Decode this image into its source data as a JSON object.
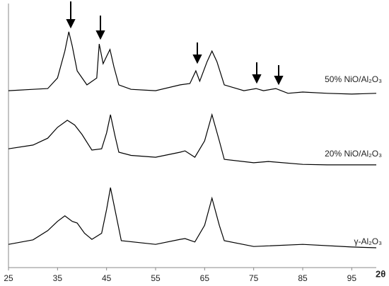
{
  "chart_data": {
    "type": "line",
    "xlabel": "2θ",
    "xlim": [
      25,
      100
    ],
    "xticks": [
      25,
      35,
      45,
      55,
      65,
      75,
      85,
      95
    ],
    "ylim": [
      0,
      100
    ],
    "series": [
      {
        "name": "50% NiO/Al₂O₃",
        "color": "#000000",
        "x": [
          25,
          30,
          33,
          35,
          36.5,
          37.3,
          38,
          39,
          41,
          43,
          43.5,
          44.3,
          45,
          45.7,
          46.5,
          47.5,
          50,
          55,
          60,
          62,
          63.2,
          64,
          65.5,
          66.5,
          67.5,
          69,
          73,
          75.5,
          77,
          79.5,
          82,
          85,
          90,
          95,
          100
        ],
        "values": [
          67,
          67.5,
          67.8,
          71.8,
          82,
          89.3,
          84,
          74.5,
          69.2,
          71.8,
          84.7,
          77.2,
          80,
          82.6,
          76,
          69.2,
          67.5,
          67,
          69.2,
          69.7,
          74.5,
          70.6,
          78,
          82,
          78,
          69.2,
          67,
          67.8,
          67,
          67.8,
          66,
          66.5,
          66,
          65.7,
          66
        ]
      },
      {
        "name": "20% NiO/Al₂O₃",
        "color": "#000000",
        "x": [
          25,
          30,
          33,
          35,
          37,
          38.5,
          40,
          42,
          44,
          45,
          45.8,
          46.7,
          47.5,
          50,
          55,
          60,
          61,
          63,
          65,
          66.5,
          68,
          69,
          75,
          78,
          85,
          90,
          100
        ],
        "values": [
          45,
          46.4,
          49,
          53.1,
          55.8,
          54,
          50.4,
          44.5,
          45,
          51,
          57.9,
          50,
          43.7,
          42.5,
          41.8,
          43.7,
          44.2,
          41.8,
          48,
          57.9,
          48,
          41,
          39.7,
          40.2,
          39.1,
          38.9,
          38.9
        ]
      },
      {
        "name": "γ-Al₂O₃",
        "color": "#000000",
        "x": [
          25,
          30,
          33,
          35,
          36.5,
          38,
          39,
          40.5,
          42,
          44,
          45,
          45.8,
          46.7,
          48,
          55,
          60,
          61,
          63,
          65,
          66.5,
          68,
          69,
          75,
          85,
          95,
          100
        ],
        "values": [
          8.8,
          10.5,
          14,
          17.5,
          19.6,
          17.5,
          16.9,
          13,
          10.7,
          13,
          22,
          30.3,
          22,
          10.2,
          8.8,
          10.7,
          11,
          9.7,
          16,
          26.3,
          16,
          10.2,
          8,
          8.8,
          7.8,
          7.5
        ]
      }
    ]
  }
}
